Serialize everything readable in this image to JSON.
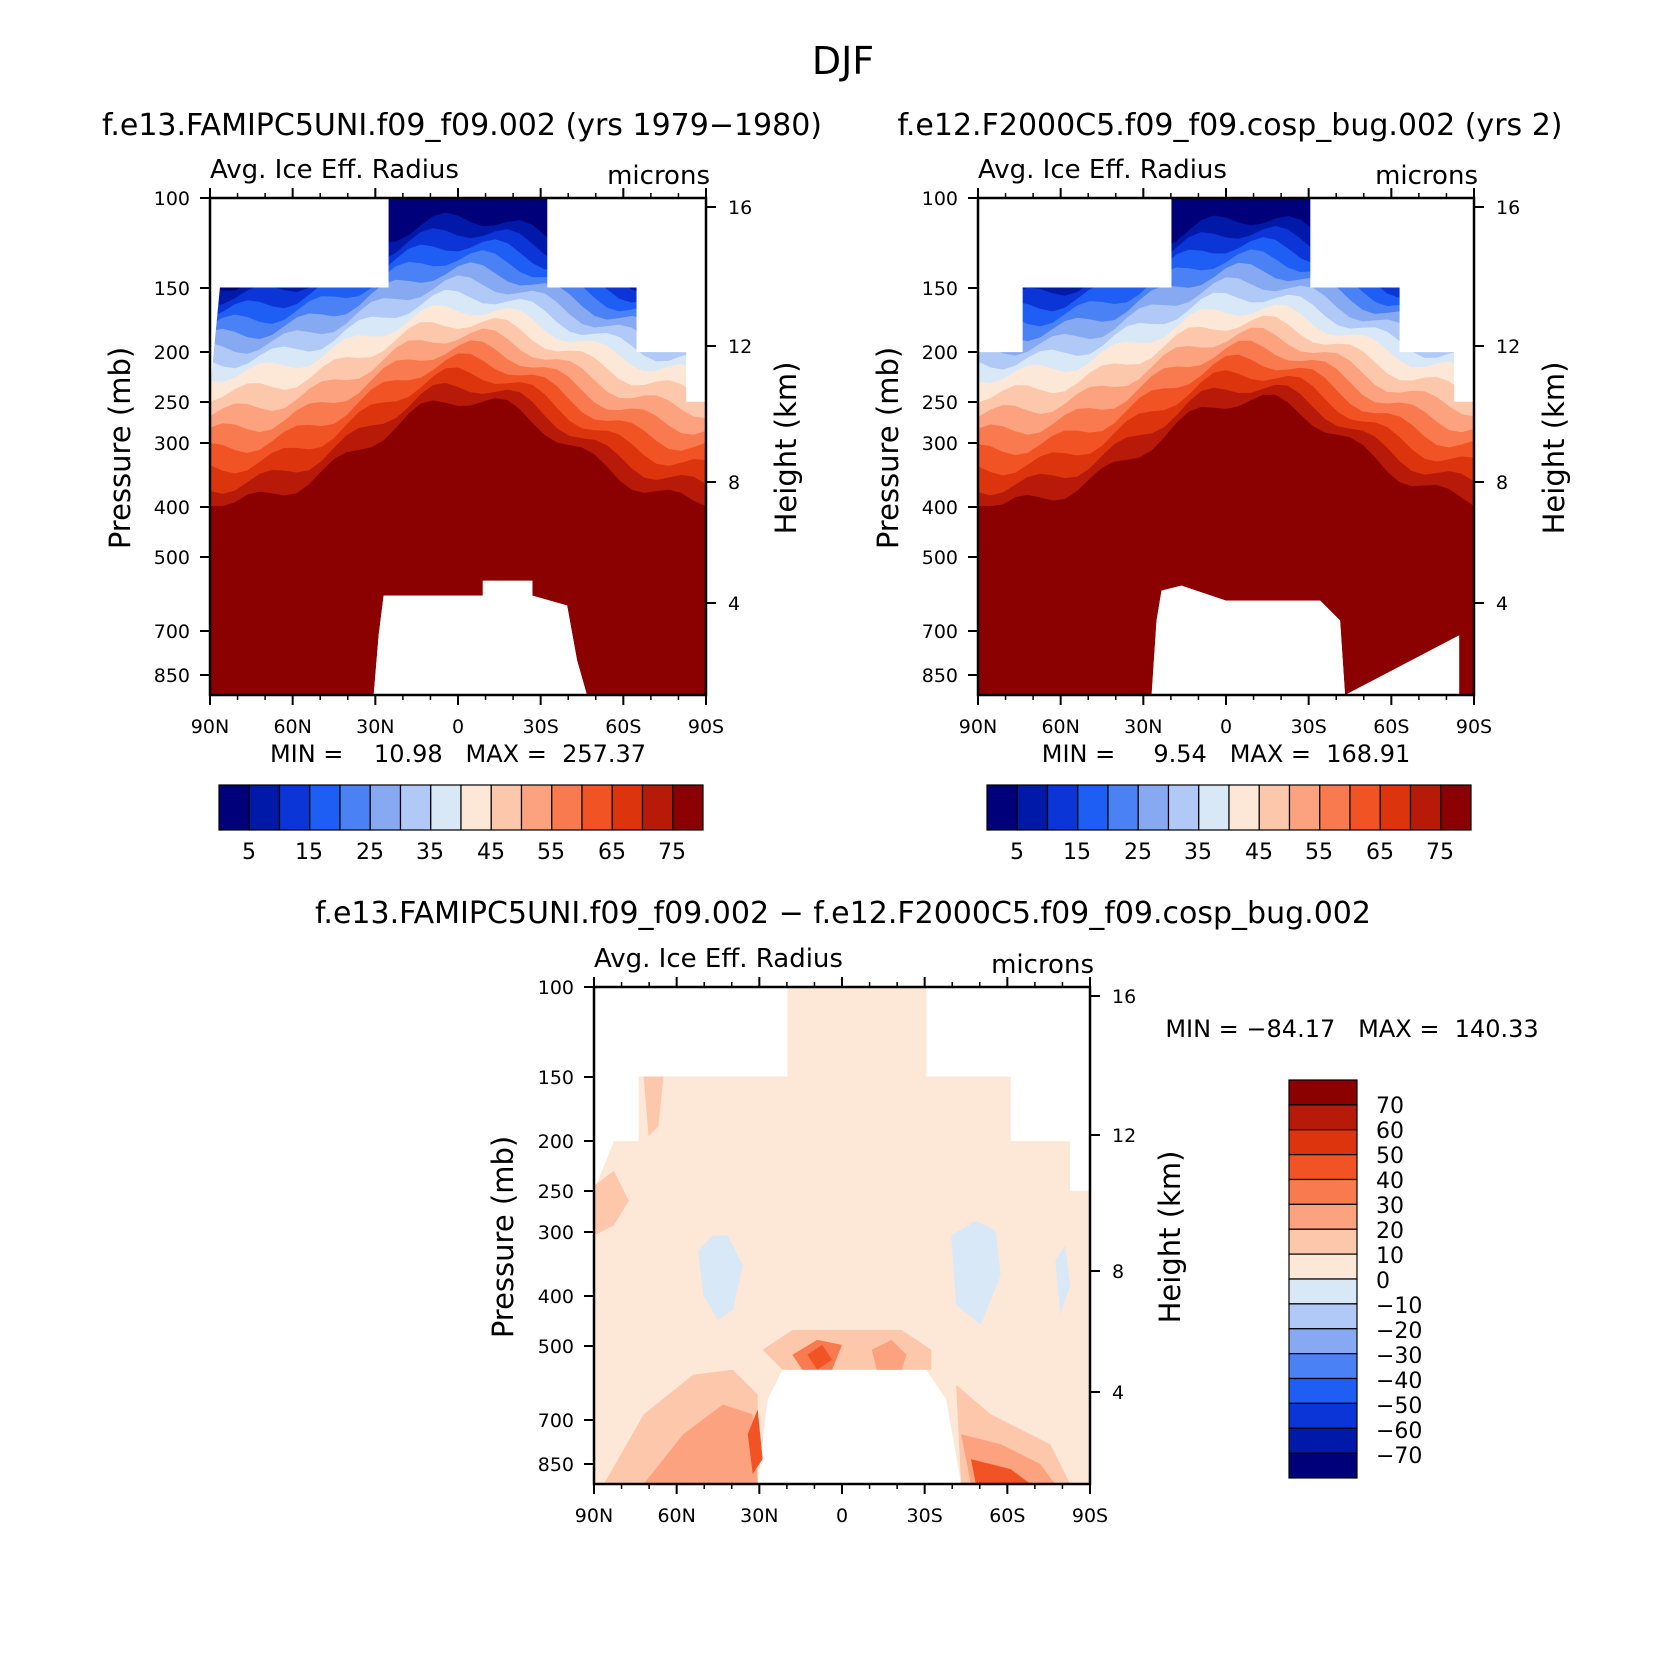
{
  "page_title": "DJF",
  "chart_data": [
    {
      "type": "heatmap",
      "id": "top-left",
      "title": "f.e13.FAMIPC5UNI.f09_f09.002 (yrs 1979−1980)",
      "variable": "Avg. Ice Eff. Radius",
      "units": "microns",
      "ylabel": "Pressure (mb)",
      "ylabel_right": "Height (km)",
      "x_ticks": [
        "90N",
        "60N",
        "30N",
        "0",
        "30S",
        "60S",
        "90S"
      ],
      "y_ticks": [
        "100",
        "150",
        "200",
        "250",
        "300",
        "400",
        "500",
        "700",
        "850"
      ],
      "y_right_ticks": [
        "16",
        "12",
        "8",
        "4"
      ],
      "min_max": "MIN =    10.98   MAX =  257.37",
      "colorbar_labels": [
        "5",
        "15",
        "25",
        "35",
        "45",
        "55",
        "65",
        "75"
      ]
    },
    {
      "type": "heatmap",
      "id": "top-right",
      "title": "f.e12.F2000C5.f09_f09.cosp_bug.002 (yrs 2)",
      "variable": "Avg. Ice Eff. Radius",
      "units": "microns",
      "ylabel": "Pressure (mb)",
      "ylabel_right": "Height (km)",
      "x_ticks": [
        "90N",
        "60N",
        "30N",
        "0",
        "30S",
        "60S",
        "90S"
      ],
      "y_ticks": [
        "100",
        "150",
        "200",
        "250",
        "300",
        "400",
        "500",
        "700",
        "850"
      ],
      "y_right_ticks": [
        "16",
        "12",
        "8",
        "4"
      ],
      "min_max": "MIN =     9.54   MAX =  168.91",
      "colorbar_labels": [
        "5",
        "15",
        "25",
        "35",
        "45",
        "55",
        "65",
        "75"
      ]
    },
    {
      "type": "heatmap",
      "id": "bottom-diff",
      "title": "f.e13.FAMIPC5UNI.f09_f09.002 − f.e12.F2000C5.f09_f09.cosp_bug.002",
      "variable": "Avg. Ice Eff. Radius",
      "units": "microns",
      "ylabel": "Pressure (mb)",
      "ylabel_right": "Height (km)",
      "x_ticks": [
        "90N",
        "60N",
        "30N",
        "0",
        "30S",
        "60S",
        "90S"
      ],
      "y_ticks": [
        "100",
        "150",
        "200",
        "250",
        "300",
        "400",
        "500",
        "700",
        "850"
      ],
      "y_right_ticks": [
        "16",
        "12",
        "8",
        "4"
      ],
      "min_max": "MIN = −84.17   MAX =  140.33",
      "colorbar_labels": [
        "70",
        "60",
        "50",
        "40",
        "30",
        "20",
        "10",
        "0",
        "−10",
        "−20",
        "−30",
        "−40",
        "−50",
        "−60",
        "−70"
      ]
    }
  ],
  "palettes": {
    "abs": [
      "#00007a",
      "#0019a8",
      "#0b35d6",
      "#1f5ef5",
      "#4a82f5",
      "#86a9f2",
      "#b0c9f6",
      "#d9e8f7",
      "#fde8d8",
      "#fdc7ac",
      "#fca27f",
      "#f97a4e",
      "#f25325",
      "#dc340d",
      "#b81a0a",
      "#8b0000"
    ],
    "diff": [
      "#8b0000",
      "#b81a0a",
      "#dc340d",
      "#f25325",
      "#f97a4e",
      "#fca27f",
      "#fdc7ac",
      "#fde8d8",
      "#d9e8f7",
      "#b0c9f6",
      "#86a9f2",
      "#4a82f5",
      "#1f5ef5",
      "#0b35d6",
      "#0019a8",
      "#00007a"
    ]
  }
}
